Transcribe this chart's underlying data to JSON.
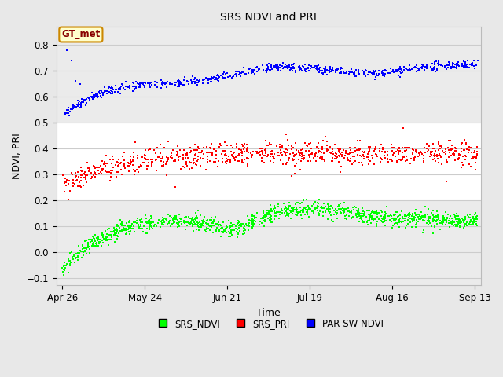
{
  "title": "SRS NDVI and PRI",
  "xlabel": "Time",
  "ylabel": "NDVI, PRI",
  "annotation_text": "GT_met",
  "annotation_bg": "#FFFFCC",
  "annotation_border": "#CC8800",
  "annotation_text_color": "#880000",
  "ylim": [
    -0.13,
    0.87
  ],
  "xlim_days": [
    -2,
    142
  ],
  "tick_dates": [
    "Apr 26",
    "May 24",
    "Jun 21",
    "Jul 19",
    "Aug 16",
    "Sep 13"
  ],
  "tick_days": [
    0,
    28,
    56,
    84,
    112,
    140
  ],
  "yticks": [
    -0.1,
    0.0,
    0.1,
    0.2,
    0.3,
    0.4,
    0.5,
    0.6,
    0.7,
    0.8
  ],
  "legend_labels": [
    "SRS_NDVI",
    "SRS_PRI",
    "PAR-SW NDVI"
  ],
  "legend_colors": [
    "#00FF00",
    "#FF0000",
    "#0000FF"
  ],
  "marker_size": 4,
  "fig_bg_color": "#E8E8E8",
  "plot_bg_color": "#FFFFFF",
  "band1_color": "#EBEBEB",
  "band2_color": "#EBEBEB",
  "grid_color": "#CCCCCC",
  "seed": 42
}
